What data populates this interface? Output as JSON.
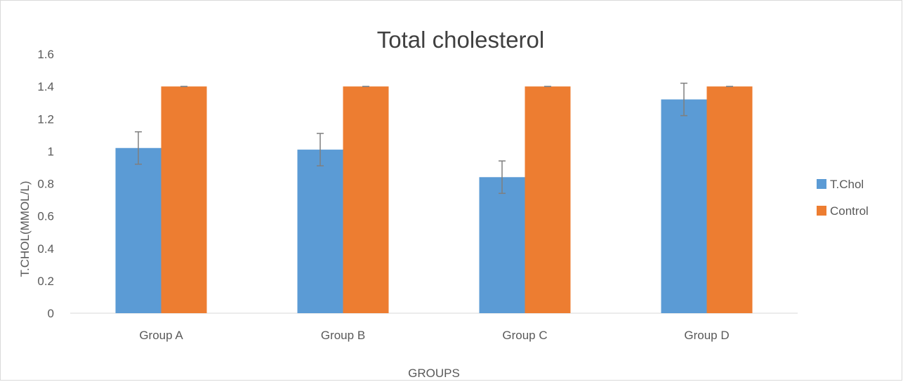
{
  "chart_data": {
    "type": "bar",
    "title": "Total cholesterol",
    "xlabel": "GROUPS",
    "ylabel": "T.CHOL(MMOL/L)",
    "categories": [
      "Group A",
      "Group B",
      "Group C",
      "Group D"
    ],
    "ylim": [
      0,
      1.6
    ],
    "yticks": [
      "0",
      "0.2",
      "0.4",
      "0.6",
      "0.8",
      "1",
      "1.2",
      "1.4",
      "1.6"
    ],
    "grid": false,
    "legend_position": "right",
    "series": [
      {
        "name": "T.Chol",
        "color": "#5b9bd5",
        "values": [
          1.02,
          1.01,
          0.84,
          1.32
        ],
        "error": [
          0.1,
          0.1,
          0.1,
          0.1
        ]
      },
      {
        "name": "Control",
        "color": "#ed7d31",
        "values": [
          1.4,
          1.4,
          1.4,
          1.4
        ],
        "error": [
          0,
          0,
          0,
          0
        ]
      }
    ]
  }
}
